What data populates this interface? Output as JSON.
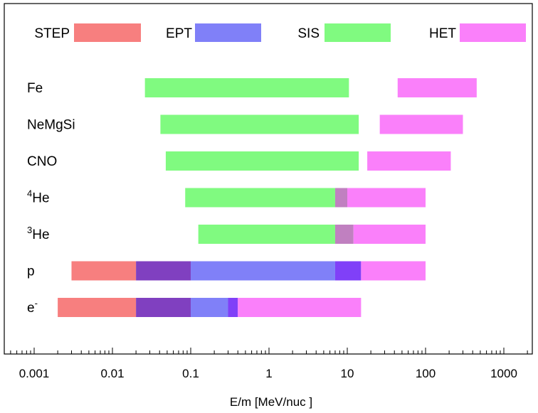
{
  "chart_data": {
    "type": "bar",
    "orientation": "horizontal-range",
    "xlabel": "E/m [MeV/nuc ]",
    "xscale": "log",
    "xlim": [
      0.0007,
      2000
    ],
    "x_ticks": [
      0.001,
      0.01,
      0.1,
      1,
      10,
      100,
      1000
    ],
    "x_tick_labels": [
      "0.001",
      "0.01",
      "0.1",
      "1",
      "10",
      "100",
      "1000"
    ],
    "grid": false,
    "legend_position": "top",
    "legend": [
      {
        "name": "STEP",
        "color": "#f77f7f"
      },
      {
        "name": "EPT",
        "color": "#8080f8"
      },
      {
        "name": "SIS",
        "color": "#80fa80"
      },
      {
        "name": "HET",
        "color": "#fa80fa"
      }
    ],
    "rows": [
      {
        "base": "Fe",
        "sup": "",
        "segments": [
          {
            "from": 0.026,
            "to": 10.5,
            "color": "#80fa80",
            "instrument": "SIS"
          },
          {
            "from": 44,
            "to": 450,
            "color": "#fa80fa",
            "instrument": "HET"
          }
        ]
      },
      {
        "base": "NeMgSi",
        "sup": "",
        "segments": [
          {
            "from": 0.041,
            "to": 14,
            "color": "#80fa80",
            "instrument": "SIS"
          },
          {
            "from": 26,
            "to": 300,
            "color": "#fa80fa",
            "instrument": "HET"
          }
        ]
      },
      {
        "base": "CNO",
        "sup": "",
        "segments": [
          {
            "from": 0.048,
            "to": 14,
            "color": "#80fa80",
            "instrument": "SIS"
          },
          {
            "from": 18,
            "to": 210,
            "color": "#fa80fa",
            "instrument": "HET"
          }
        ]
      },
      {
        "base": "He",
        "sup": "4",
        "segments": [
          {
            "from": 0.085,
            "to": 7,
            "color": "#80fa80",
            "instrument": "SIS"
          },
          {
            "from": 7,
            "to": 10,
            "color": "#c080c0",
            "instrument": "SIS+HET overlap"
          },
          {
            "from": 10,
            "to": 100,
            "color": "#fa80fa",
            "instrument": "HET"
          }
        ]
      },
      {
        "base": "He",
        "sup": "3",
        "segments": [
          {
            "from": 0.125,
            "to": 7,
            "color": "#80fa80",
            "instrument": "SIS"
          },
          {
            "from": 7,
            "to": 12,
            "color": "#c080c0",
            "instrument": "SIS+HET overlap"
          },
          {
            "from": 12,
            "to": 100,
            "color": "#fa80fa",
            "instrument": "HET"
          }
        ]
      },
      {
        "base": "p",
        "sup": "",
        "segments": [
          {
            "from": 0.003,
            "to": 0.02,
            "color": "#f77f7f",
            "instrument": "STEP"
          },
          {
            "from": 0.02,
            "to": 0.1,
            "color": "#8040c0",
            "instrument": "STEP+EPT overlap"
          },
          {
            "from": 0.1,
            "to": 7,
            "color": "#8080f8",
            "instrument": "EPT"
          },
          {
            "from": 7,
            "to": 15,
            "color": "#8040f8",
            "instrument": "EPT+HET overlap"
          },
          {
            "from": 15,
            "to": 100,
            "color": "#fa80fa",
            "instrument": "HET"
          }
        ]
      },
      {
        "base": "e",
        "sup": "-",
        "segments": [
          {
            "from": 0.002,
            "to": 0.02,
            "color": "#f77f7f",
            "instrument": "STEP"
          },
          {
            "from": 0.02,
            "to": 0.1,
            "color": "#8040c0",
            "instrument": "STEP+EPT overlap"
          },
          {
            "from": 0.1,
            "to": 0.3,
            "color": "#8080f8",
            "instrument": "EPT"
          },
          {
            "from": 0.3,
            "to": 0.4,
            "color": "#8040f8",
            "instrument": "EPT+HET overlap"
          },
          {
            "from": 0.4,
            "to": 15,
            "color": "#fa80fa",
            "instrument": "HET"
          }
        ]
      }
    ]
  }
}
